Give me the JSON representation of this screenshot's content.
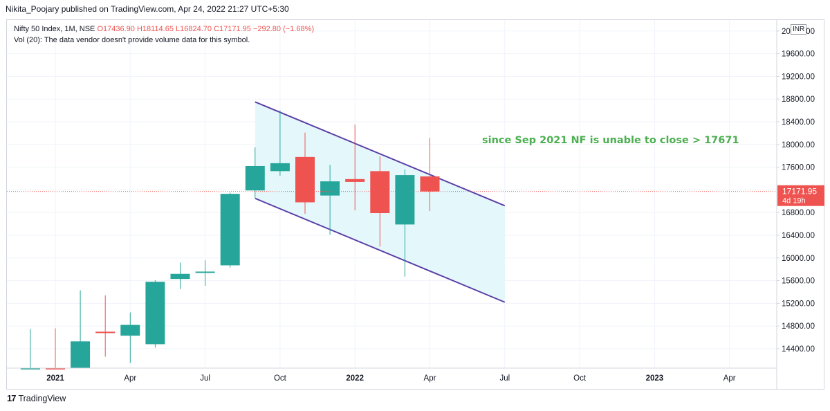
{
  "header": {
    "text": "Nikita_Poojary published on TradingView.com, Apr 24, 2022 21:27 UTC+5:30"
  },
  "legend": {
    "symbol": "Nifty 50 Index, 1M, NSE",
    "values": "O17436.90  H18114.65  L16824.70  C17171.95  −292.80 (−1.68%)",
    "volume_note": "Vol (20): The data vendor doesn't provide volume data for this symbol."
  },
  "currency_badge": "INR",
  "price_label": {
    "value": "17171.95",
    "countdown": "4d 19h"
  },
  "annotation": "since Sep 2021 NF is unable to close > 17671",
  "footer": {
    "brand": "TradingView",
    "logo_glyph": "17"
  },
  "colors": {
    "up": "#26a69a",
    "down": "#ef5350",
    "channel": "#5b3fa6",
    "channel_fill": "#e3f8fc",
    "annotation": "#4caf50",
    "grid": "#f0f3fa"
  },
  "chart_data": {
    "type": "candlestick",
    "y_axis": {
      "ticks": [
        14400,
        14800,
        15200,
        15600,
        16000,
        16400,
        16800,
        17200,
        17600,
        18000,
        18400,
        18800,
        19200,
        19600,
        20000
      ],
      "tick_labels": [
        "14400.00",
        "14800.00",
        "15200.00",
        "15600.00",
        "16000.00",
        "16400.00",
        "16800.00",
        "17200.00",
        "17600.00",
        "18000.00",
        "18400.00",
        "18800.00",
        "19200.00",
        "19600.00",
        "20000.00"
      ],
      "ylim": [
        14000,
        20200
      ]
    },
    "x_axis": {
      "ticks": [
        "2021-01",
        "2021-04",
        "2021-07",
        "2021-10",
        "2022-01",
        "2022-04",
        "2022-07",
        "2022-10",
        "2023-01",
        "2023-04"
      ],
      "tick_labels": [
        "2021",
        "Apr",
        "Jul",
        "Oct",
        "2022",
        "Apr",
        "Jul",
        "Oct",
        "2023",
        "Apr"
      ],
      "bold": [
        "2021",
        "2022",
        "2023"
      ]
    },
    "candles": [
      {
        "date": "2020-12",
        "open": 13000,
        "high": 14750,
        "low": 13000,
        "close": 13980
      },
      {
        "date": "2021-01",
        "open": 14020,
        "high": 14760,
        "low": 13600,
        "close": 13830
      },
      {
        "date": "2021-02",
        "open": 13830,
        "high": 15430,
        "low": 13600,
        "close": 14530
      },
      {
        "date": "2021-03",
        "open": 14700,
        "high": 15340,
        "low": 14260,
        "close": 14690
      },
      {
        "date": "2021-04",
        "open": 14630,
        "high": 15040,
        "low": 14150,
        "close": 14820
      },
      {
        "date": "2021-05",
        "open": 14480,
        "high": 15610,
        "low": 14420,
        "close": 15580
      },
      {
        "date": "2021-06",
        "open": 15630,
        "high": 15920,
        "low": 15450,
        "close": 15720
      },
      {
        "date": "2021-07",
        "open": 15750,
        "high": 15960,
        "low": 15510,
        "close": 15760
      },
      {
        "date": "2021-08",
        "open": 15870,
        "high": 17150,
        "low": 15830,
        "close": 17130
      },
      {
        "date": "2021-09",
        "open": 17190,
        "high": 17950,
        "low": 17060,
        "close": 17620
      },
      {
        "date": "2021-10",
        "open": 17530,
        "high": 18600,
        "low": 17450,
        "close": 17670
      },
      {
        "date": "2021-11",
        "open": 17780,
        "high": 18210,
        "low": 16780,
        "close": 16980
      },
      {
        "date": "2021-12",
        "open": 17100,
        "high": 17640,
        "low": 16410,
        "close": 17350
      },
      {
        "date": "2022-01",
        "open": 17390,
        "high": 18350,
        "low": 16840,
        "close": 17340
      },
      {
        "date": "2022-02",
        "open": 17530,
        "high": 17790,
        "low": 16200,
        "close": 16790
      },
      {
        "date": "2022-03",
        "open": 16590,
        "high": 17560,
        "low": 15670,
        "close": 17460
      },
      {
        "date": "2022-04",
        "open": 17436.9,
        "high": 18114.65,
        "low": 16824.7,
        "close": 17171.95
      }
    ],
    "last_price": 17171.95,
    "channel": {
      "upper": [
        {
          "date": "2021-09",
          "value": 18750
        },
        {
          "date": "2022-07",
          "value": 16920
        }
      ],
      "lower": [
        {
          "date": "2021-09",
          "value": 17050
        },
        {
          "date": "2022-07",
          "value": 15220
        }
      ]
    }
  }
}
